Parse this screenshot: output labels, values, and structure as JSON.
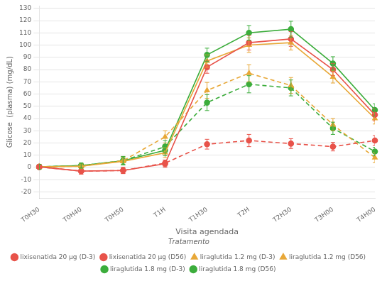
{
  "chart_data": {
    "type": "line",
    "categories": [
      "T0H30",
      "T0H40",
      "T0H50",
      "T1H",
      "T1H30",
      "T2H",
      "T2H30",
      "T3H00",
      "T4H00"
    ],
    "series": [
      {
        "name": "lixisenatida 20 µg (D-3)",
        "color": "#e8534a",
        "line_style": "solid",
        "marker": "circle",
        "values": [
          0.5,
          -3.0,
          -2.5,
          3.0,
          82.0,
          102.0,
          105.0,
          80.0,
          43.0
        ],
        "yerr": [
          2.0,
          2.5,
          2.5,
          3.0,
          5.0,
          6.0,
          6.0,
          5.0,
          5.0
        ]
      },
      {
        "name": "lixisenatida 20 µg (D56)",
        "color": "#e8534a",
        "line_style": "dashed",
        "marker": "circle",
        "values": [
          0.5,
          -3.0,
          -2.5,
          3.5,
          19.0,
          22.0,
          19.5,
          17.0,
          22.0
        ],
        "yerr": [
          2.0,
          2.5,
          2.5,
          2.5,
          4.0,
          5.0,
          4.0,
          3.5,
          4.0
        ]
      },
      {
        "name": "liraglutida 1.2 mg (D-3)",
        "color": "#e8a838",
        "line_style": "solid",
        "marker": "triangle",
        "values": [
          0.5,
          1.0,
          5.0,
          12.0,
          87.0,
          100.0,
          102.0,
          74.0,
          40.0
        ],
        "yerr": [
          2.0,
          2.0,
          3.0,
          4.0,
          5.0,
          6.0,
          6.0,
          5.0,
          4.5
        ]
      },
      {
        "name": "liraglutida 1.2 mg (D56)",
        "color": "#e8a838",
        "line_style": "dashed",
        "marker": "triangle",
        "values": [
          0.5,
          1.0,
          5.5,
          25.0,
          63.0,
          77.0,
          67.0,
          35.0,
          8.0
        ],
        "yerr": [
          2.0,
          2.0,
          3.5,
          5.0,
          6.5,
          7.0,
          6.5,
          5.0,
          4.0
        ]
      },
      {
        "name": "liraglutida 1.8 mg (D-3)",
        "color": "#3cad3c",
        "line_style": "solid",
        "marker": "circle",
        "values": [
          0.5,
          1.5,
          5.5,
          14.0,
          92.0,
          110.0,
          113.0,
          85.0,
          47.0
        ],
        "yerr": [
          2.0,
          2.0,
          3.0,
          4.5,
          5.5,
          6.0,
          6.5,
          5.5,
          5.0
        ]
      },
      {
        "name": "liraglutida 1.8 mg (D56)",
        "color": "#3cad3c",
        "line_style": "dashed",
        "marker": "circle",
        "values": [
          0.5,
          1.5,
          5.5,
          17.0,
          53.0,
          68.0,
          65.0,
          32.0,
          13.0
        ],
        "yerr": [
          2.0,
          2.0,
          3.5,
          5.0,
          6.5,
          7.0,
          6.5,
          5.0,
          3.5
        ]
      }
    ],
    "xlabel": "Visita agendada",
    "ylabel": "Glicose  (plasma) (mg/dL)",
    "legend_title": "Tratamento",
    "legend": "bottom",
    "ylim": [
      -25,
      132
    ],
    "yticks": [
      -20,
      -10,
      0,
      10,
      20,
      30,
      40,
      50,
      60,
      70,
      80,
      90,
      100,
      110,
      120,
      130
    ],
    "grid": true
  }
}
